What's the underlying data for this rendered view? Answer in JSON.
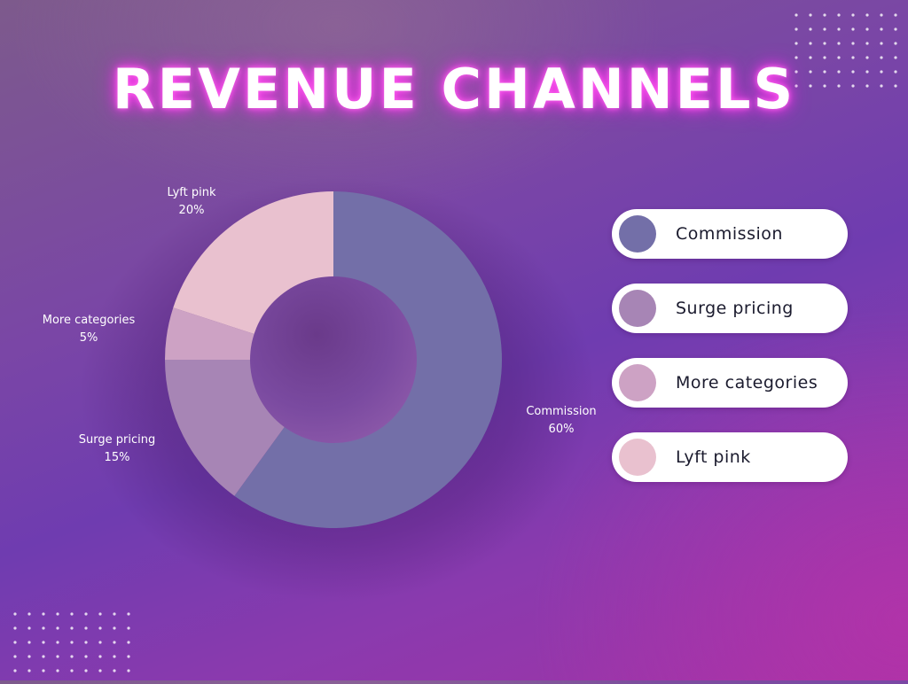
{
  "title": "REVENUE CHANNELS",
  "chart_data": {
    "type": "pie",
    "donut": true,
    "title": "REVENUE CHANNELS",
    "categories": [
      "Commission",
      "Surge pricing",
      "More categories",
      "Lyft pink"
    ],
    "values": [
      60,
      15,
      5,
      20
    ],
    "unit": "%",
    "labels": [
      "60%",
      "15%",
      "5%",
      "20%"
    ],
    "colors": [
      "#736fa8",
      "#a785b5",
      "#cda2c4",
      "#e9c1cf"
    ],
    "legend_position": "right"
  },
  "legend": {
    "items": [
      {
        "label": "Commission",
        "color": "#736fa8"
      },
      {
        "label": "Surge pricing",
        "color": "#a785b5"
      },
      {
        "label": "More categories",
        "color": "#cda2c4"
      },
      {
        "label": "Lyft pink",
        "color": "#e9c1cf"
      }
    ]
  }
}
